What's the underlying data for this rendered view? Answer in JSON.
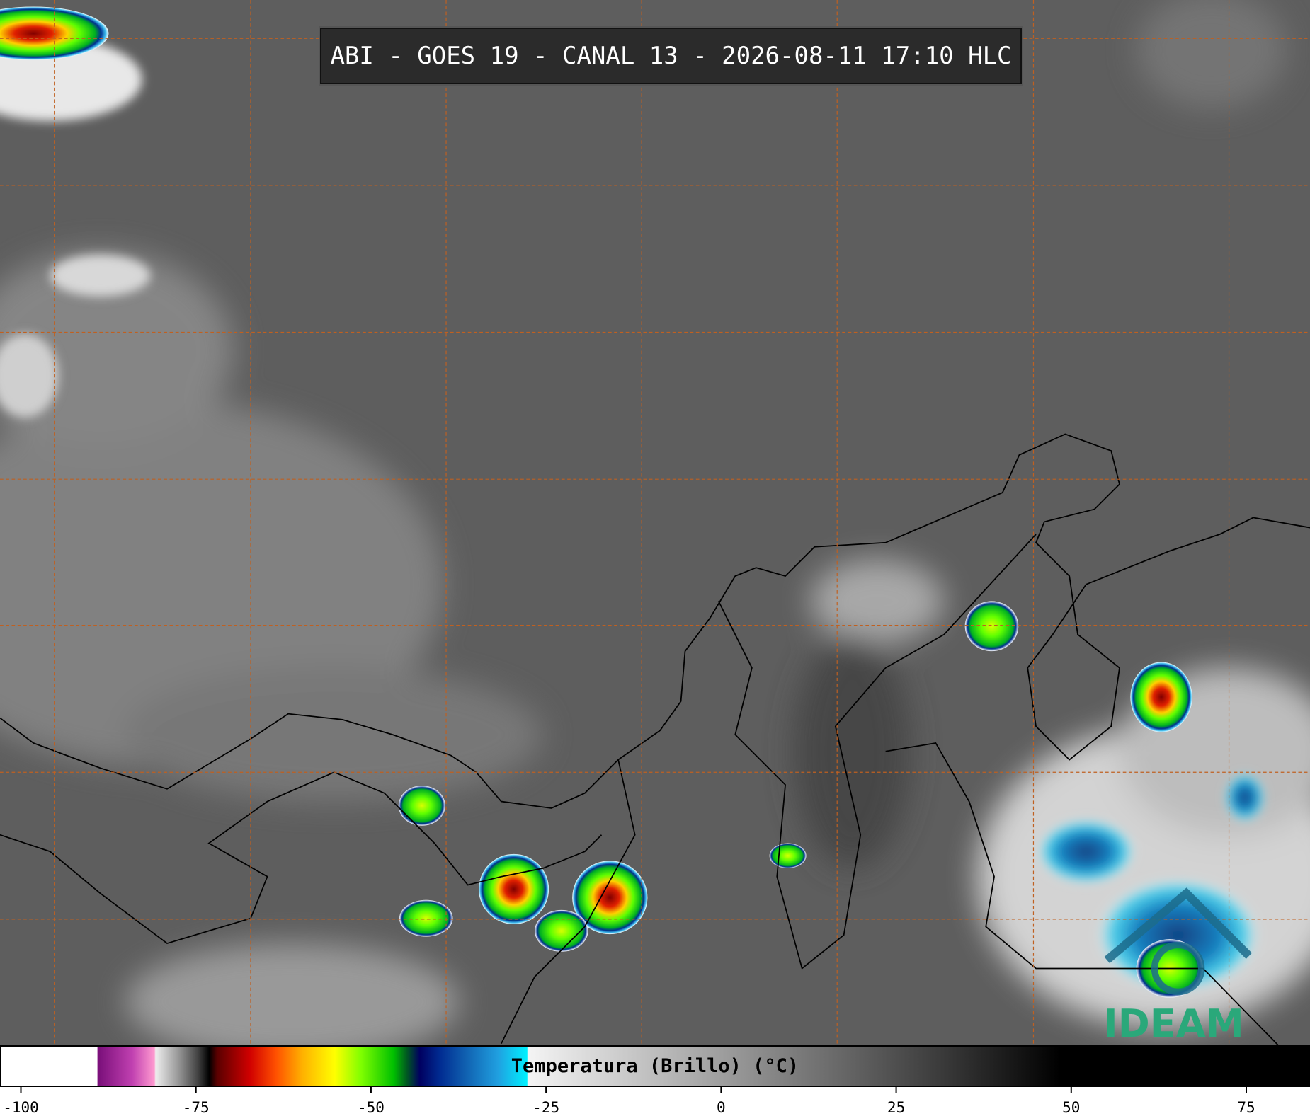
{
  "title": "ABI - GOES 19 - CANAL 13 - 2026-08-11 17:10 HLC",
  "colorbar": {
    "label": "Temperatura (Brillo) (°C)",
    "ticks": [
      -100,
      -75,
      -50,
      -25,
      0,
      25,
      50,
      75
    ]
  },
  "logo": "IDEAM"
}
